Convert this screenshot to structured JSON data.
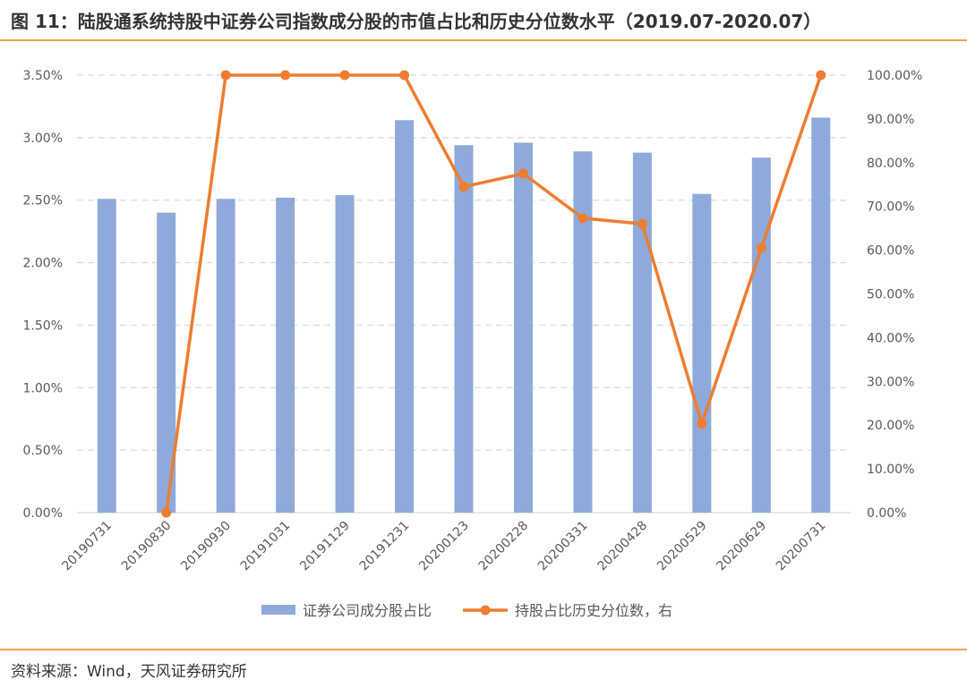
{
  "title": "图 11：陆股通系统持股中证券公司指数成分股的市值占比和历史分位数水平（2019.07-2020.07）",
  "source": "资料来源：Wind，天风证券研究所",
  "colors": {
    "bar": "#8eaadb",
    "line": "#ed7d31",
    "grid": "#d9d9d9",
    "accent_rule": "#f0a04b"
  },
  "chart_data": {
    "type": "bar",
    "categories": [
      "20190731",
      "20190830",
      "20190930",
      "20191031",
      "20191129",
      "20191231",
      "20200123",
      "20200228",
      "20200331",
      "20200428",
      "20200529",
      "20200629",
      "20200731"
    ],
    "series": [
      {
        "name": "证券公司成分股占比",
        "type": "bar",
        "axis": "left",
        "values": [
          2.51,
          2.4,
          2.51,
          2.52,
          2.54,
          3.14,
          2.94,
          2.96,
          2.89,
          2.88,
          2.55,
          2.84,
          3.16
        ]
      },
      {
        "name": "持股占比历史分位数，右",
        "type": "line",
        "axis": "right",
        "values": [
          null,
          0.0,
          100.0,
          100.0,
          100.0,
          100.0,
          74.5,
          77.5,
          67.3,
          66.0,
          20.3,
          60.5,
          100.0
        ]
      }
    ],
    "yleft": {
      "ylim": [
        0,
        3.5
      ],
      "ticks": [
        "0.00%",
        "0.50%",
        "1.00%",
        "1.50%",
        "2.00%",
        "2.50%",
        "3.00%",
        "3.50%"
      ]
    },
    "yright": {
      "ylim": [
        0,
        100
      ],
      "ticks": [
        "0.00%",
        "10.00%",
        "20.00%",
        "30.00%",
        "40.00%",
        "50.00%",
        "60.00%",
        "70.00%",
        "80.00%",
        "90.00%",
        "100.00%"
      ]
    },
    "grid": true,
    "legend_position": "bottom"
  }
}
